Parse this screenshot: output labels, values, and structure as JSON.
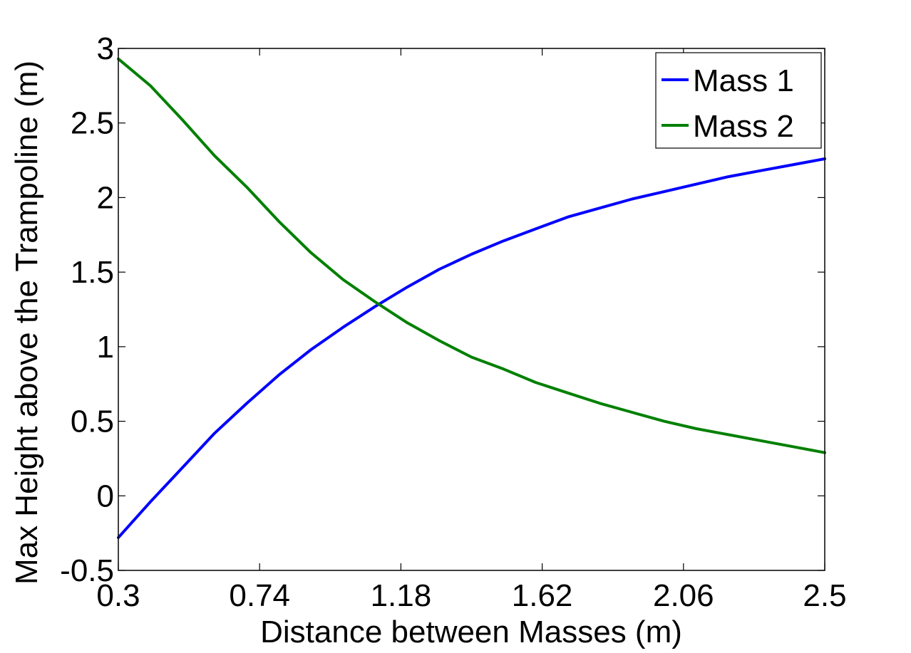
{
  "chart_data": {
    "type": "line",
    "xlabel": "Distance between Masses (m)",
    "ylabel": "Max Height above the Trampoline (m)",
    "xlim": [
      0.3,
      2.5
    ],
    "ylim": [
      -0.5,
      3
    ],
    "xticks": [
      0.3,
      0.74,
      1.18,
      1.62,
      2.06,
      2.5
    ],
    "xtick_labels": [
      "0.3",
      "0.74",
      "1.18",
      "1.62",
      "2.06",
      "2.5"
    ],
    "yticks": [
      -0.5,
      0,
      0.5,
      1,
      1.5,
      2,
      2.5,
      3
    ],
    "ytick_labels": [
      "-0.5",
      "0",
      "0.5",
      "1",
      "1.5",
      "2",
      "2.5",
      "3"
    ],
    "grid": false,
    "legend_position": "top-right",
    "x": [
      0.3,
      0.4,
      0.5,
      0.6,
      0.7,
      0.8,
      0.9,
      1.0,
      1.1,
      1.2,
      1.3,
      1.4,
      1.5,
      1.6,
      1.7,
      1.8,
      1.9,
      2.0,
      2.1,
      2.2,
      2.3,
      2.4,
      2.5
    ],
    "series": [
      {
        "name": "Mass 1",
        "color": "#0000ff",
        "values": [
          -0.28,
          -0.04,
          0.19,
          0.42,
          0.62,
          0.81,
          0.98,
          1.13,
          1.27,
          1.4,
          1.52,
          1.62,
          1.71,
          1.79,
          1.87,
          1.93,
          1.99,
          2.04,
          2.09,
          2.14,
          2.18,
          2.22,
          2.26
        ]
      },
      {
        "name": "Mass 2",
        "color": "#008000",
        "values": [
          2.93,
          2.75,
          2.52,
          2.28,
          2.07,
          1.84,
          1.63,
          1.45,
          1.3,
          1.16,
          1.04,
          0.93,
          0.85,
          0.76,
          0.69,
          0.62,
          0.56,
          0.5,
          0.45,
          0.41,
          0.37,
          0.33,
          0.29
        ]
      }
    ]
  }
}
